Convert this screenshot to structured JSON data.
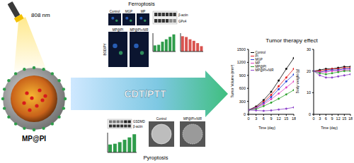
{
  "light": {
    "label": "808 nm"
  },
  "nanoparticle": {
    "label": "MP@PI"
  },
  "arrow": {
    "label": "CDT/PTT"
  },
  "ferroptosis": {
    "title": "Ferroptosis",
    "stain": "BODIPY",
    "images": [
      "Control",
      "MGP",
      "MP",
      "MP@PI",
      "MP@PI+NIR"
    ],
    "blot": [
      "β-actin",
      "GPx4"
    ]
  },
  "pyroptosis": {
    "title": "Pyroptosis",
    "blot": [
      "GSDMD",
      "β-actin"
    ],
    "images": [
      "Control",
      "MP@PI+NIR"
    ]
  },
  "results": {
    "title": "Tumor therapy effect"
  },
  "chart_data": [
    {
      "type": "bar",
      "categories": [
        null,
        null,
        null,
        null,
        null,
        null
      ],
      "values": [
        1,
        1.1,
        1.6,
        2.0,
        2.4,
        2.8
      ],
      "color": "#2e9c4a",
      "ylim": [
        0,
        3
      ],
      "tick_labels": false
    },
    {
      "type": "bar",
      "categories": [
        null,
        null,
        null,
        null,
        null,
        null
      ],
      "values": [
        1,
        0.95,
        0.8,
        0.7,
        0.55,
        0.35
      ],
      "color": "#d9534f",
      "ylim": [
        0,
        1.2
      ],
      "tick_labels": false
    },
    {
      "type": "bar",
      "categories": [
        null,
        null,
        null,
        null,
        null,
        null
      ],
      "values": [
        1,
        1.1,
        1.3,
        1.6,
        1.9,
        2.3
      ],
      "color": "#2e9c4a",
      "ylim": [
        0,
        2.5
      ],
      "tick_labels": false
    },
    {
      "type": "line",
      "x_label": "Time (day)",
      "y_label": "Tumor Volume (mm³)",
      "x": [
        0,
        3,
        6,
        9,
        12,
        15,
        18
      ],
      "xlim": [
        0,
        18
      ],
      "xticks": [
        0,
        3,
        6,
        9,
        12,
        15,
        18
      ],
      "ylim": [
        0,
        1500
      ],
      "yticks": [
        0,
        300,
        600,
        900,
        1200,
        1500
      ],
      "legend": "upper left",
      "marker": "circle",
      "series": [
        {
          "name": "Control",
          "color": "#000000",
          "values": [
            100,
            180,
            330,
            520,
            780,
            1050,
            1300
          ]
        },
        {
          "name": "PI",
          "color": "#e41a1c",
          "values": [
            100,
            160,
            290,
            450,
            650,
            850,
            1050
          ]
        },
        {
          "name": "MGP",
          "color": "#1f3fd6",
          "values": [
            100,
            150,
            260,
            400,
            580,
            760,
            920
          ]
        },
        {
          "name": "MP",
          "color": "#e040c0",
          "values": [
            100,
            140,
            230,
            350,
            480,
            620,
            760
          ]
        },
        {
          "name": "MP@PI",
          "color": "#2ca02c",
          "values": [
            100,
            120,
            190,
            270,
            360,
            460,
            560
          ]
        },
        {
          "name": "MP@PI+NIR",
          "color": "#8b3fc9",
          "values": [
            100,
            90,
            80,
            90,
            110,
            130,
            160
          ]
        }
      ]
    },
    {
      "type": "line",
      "x_label": "Time (day)",
      "y_label": "Body weight (g)",
      "x": [
        0,
        3,
        6,
        9,
        12,
        15,
        18
      ],
      "xlim": [
        0,
        18
      ],
      "xticks": [
        0,
        3,
        6,
        9,
        12,
        15,
        18
      ],
      "ylim": [
        0,
        30
      ],
      "yticks": [
        0,
        10,
        20,
        30
      ],
      "marker": "circle",
      "series": [
        {
          "name": "Control",
          "color": "#000000",
          "values": [
            20,
            20.5,
            21,
            21,
            21.5,
            22,
            22
          ]
        },
        {
          "name": "PI",
          "color": "#e41a1c",
          "values": [
            20,
            20,
            20.5,
            21,
            21,
            21.5,
            21.5
          ]
        },
        {
          "name": "MGP",
          "color": "#1f3fd6",
          "values": [
            20,
            19.5,
            20,
            20.5,
            20.5,
            21,
            21
          ]
        },
        {
          "name": "MP",
          "color": "#e040c0",
          "values": [
            20,
            19.5,
            19.5,
            20,
            20,
            20.5,
            20.5
          ]
        },
        {
          "name": "MP@PI",
          "color": "#2ca02c",
          "values": [
            20,
            19,
            18.5,
            19,
            19.5,
            20,
            20
          ]
        },
        {
          "name": "MP@PI+NIR",
          "color": "#8b3fc9",
          "values": [
            20,
            18,
            17,
            17,
            17.5,
            18,
            18.5
          ]
        }
      ]
    }
  ]
}
